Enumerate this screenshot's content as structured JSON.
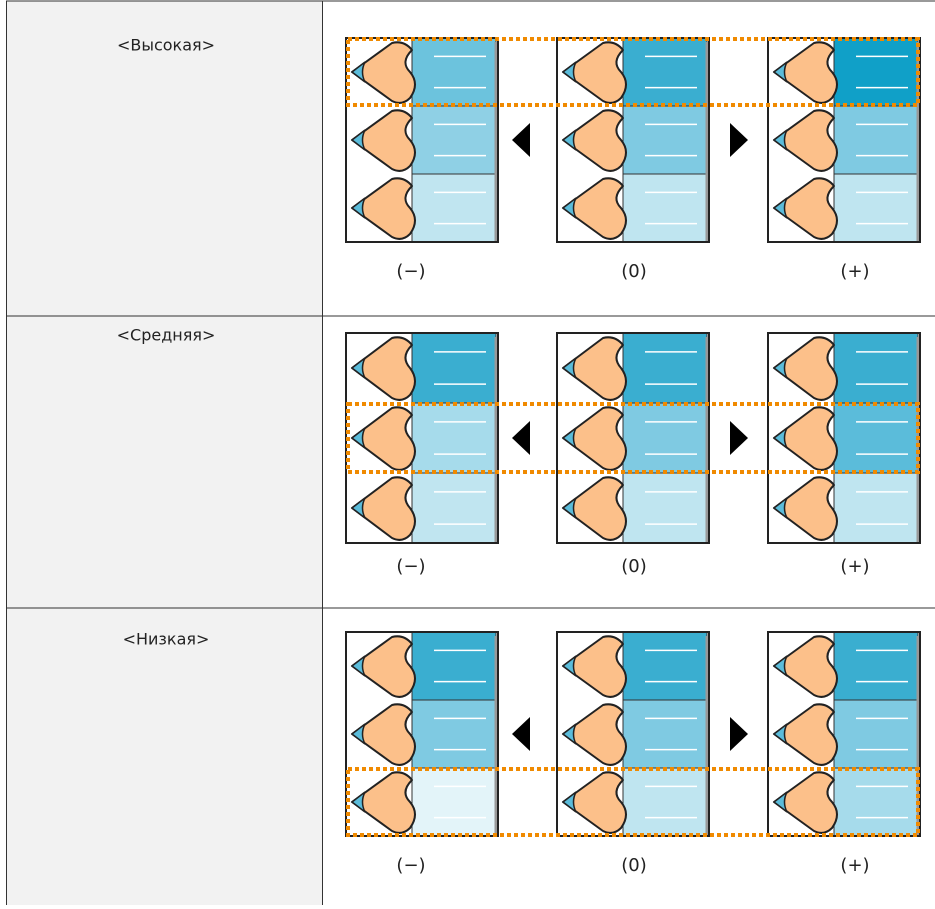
{
  "table": {
    "rows": [
      {
        "level": "<Высокая>",
        "scale": [
          "(−)",
          "(0)",
          "(+)"
        ]
      },
      {
        "level": "<Средняя>",
        "scale": [
          "(−)",
          "(0)",
          "(+)"
        ]
      },
      {
        "level": "<Низкая>",
        "scale": [
          "(−)",
          "(0)",
          "(+)"
        ]
      }
    ]
  }
}
